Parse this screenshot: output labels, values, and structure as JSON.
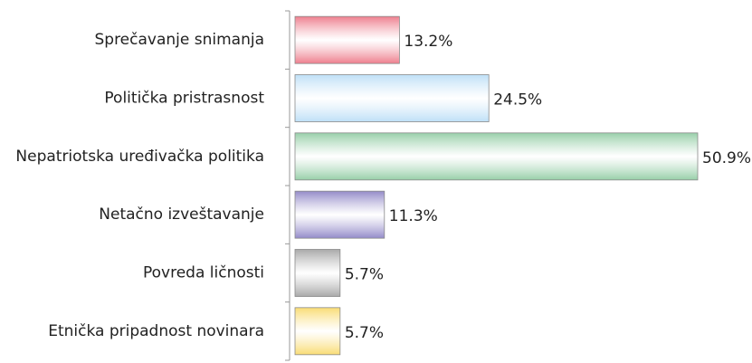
{
  "chart_data": {
    "type": "bar",
    "orientation": "horizontal",
    "categories": [
      "Sprečavanje snimanja",
      "Politička pristrasnost",
      "Nepatriotska uređivačka politika",
      "Netačno izveštavanje",
      "Povreda ličnosti",
      "Etnička pripadnost novinara"
    ],
    "values": [
      13.2,
      24.5,
      50.9,
      11.3,
      5.7,
      5.7
    ],
    "value_labels": [
      "13.2%",
      "24.5%",
      "50.9%",
      "11.3%",
      "5.7%",
      "5.7%"
    ],
    "colors": [
      "#ee7f8e",
      "#bfe0f7",
      "#98cfa9",
      "#948bc9",
      "#a9a9a9",
      "#f9dc74"
    ]
  }
}
